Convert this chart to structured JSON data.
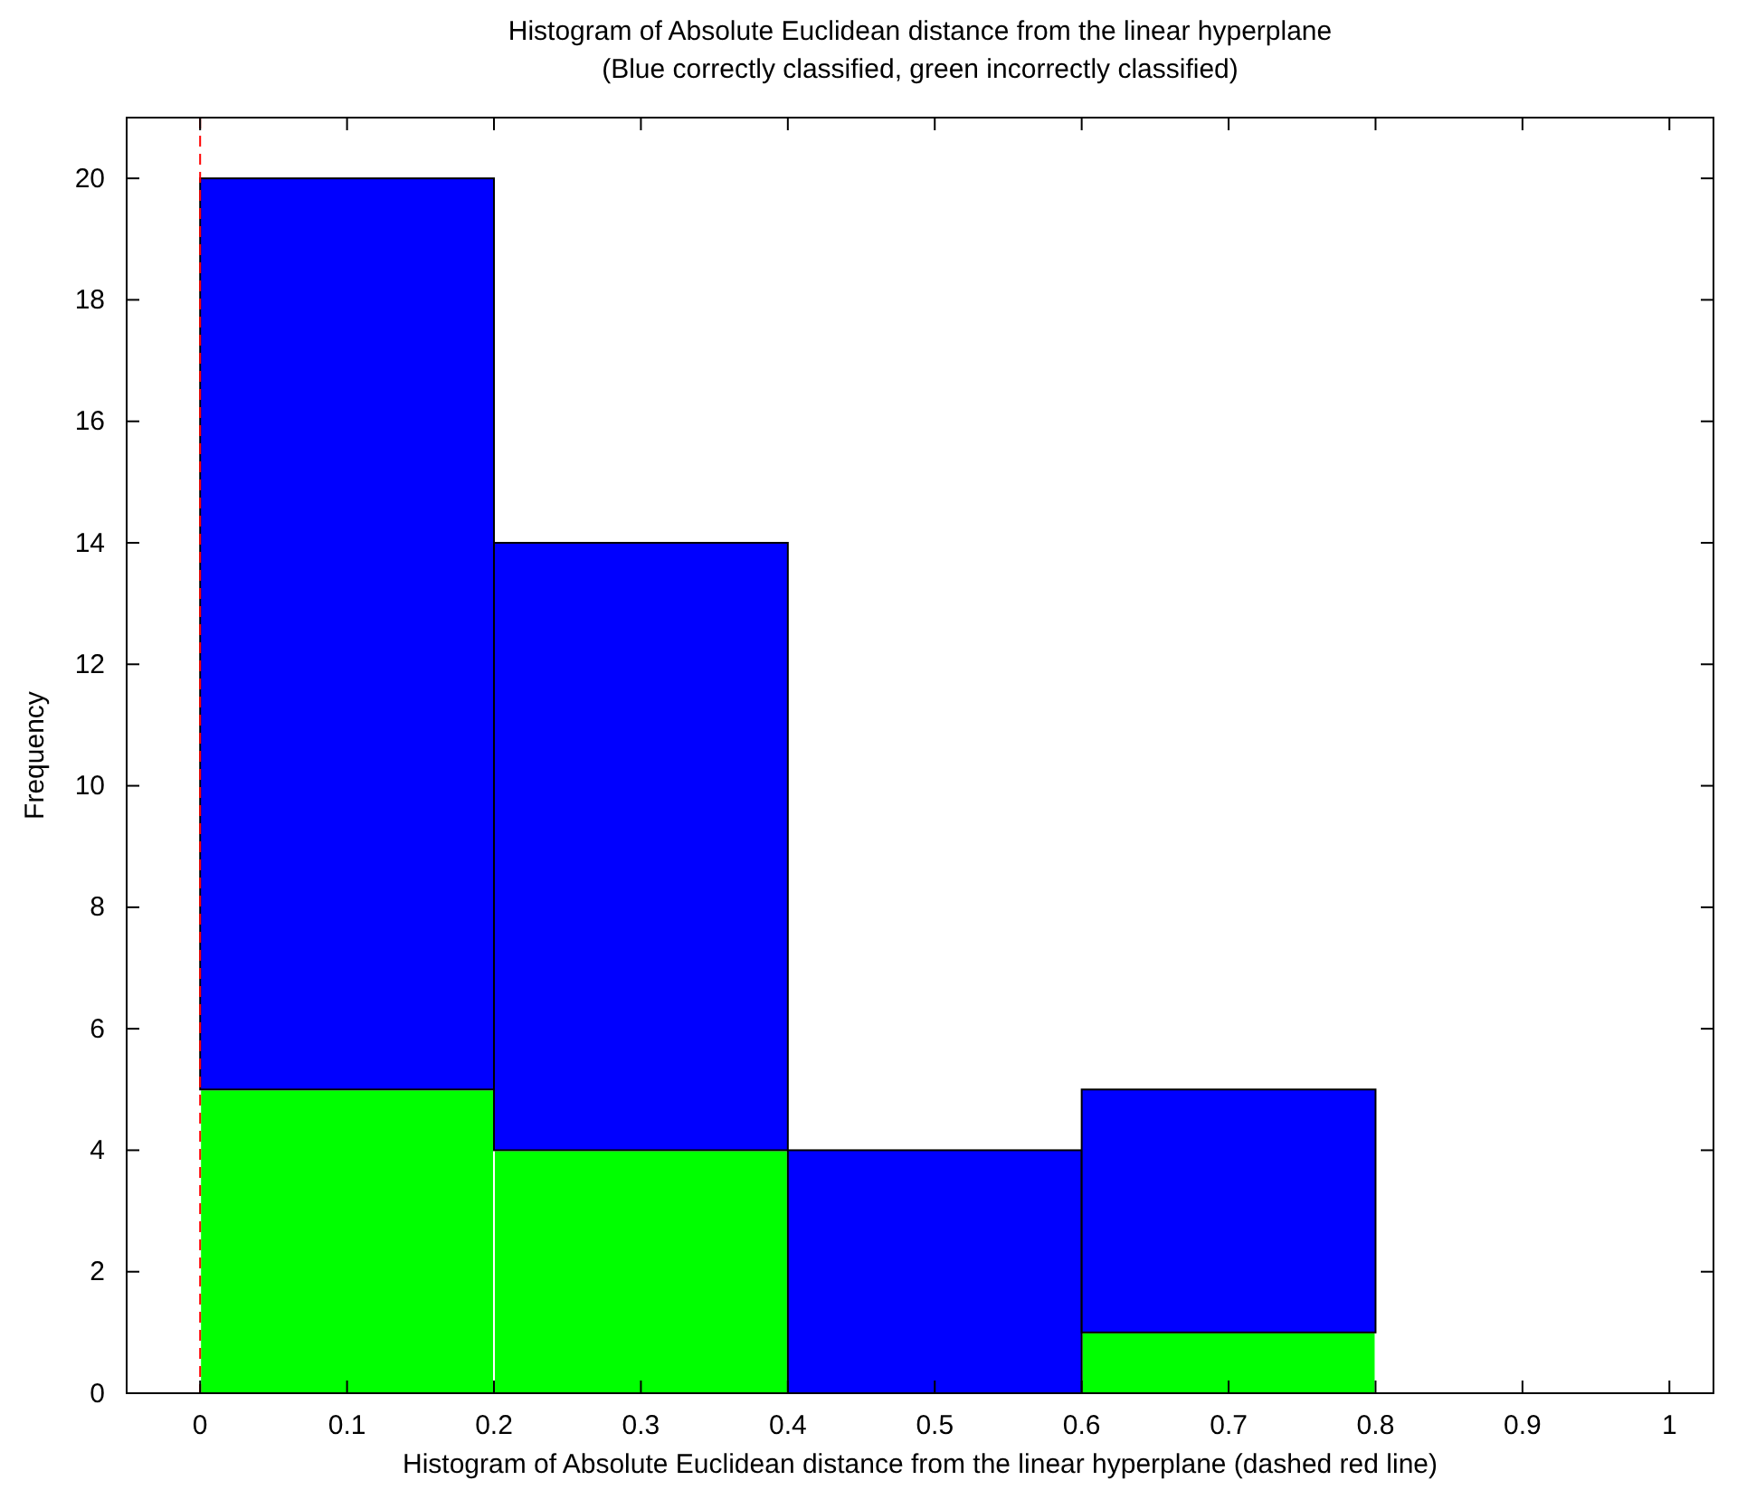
{
  "chart_data": {
    "type": "bar",
    "title": "Histogram of Absolute Euclidean distance from the linear hyperplane",
    "subtitle": "(Blue correctly classified, green incorrectly classified)",
    "xlabel": "Histogram of Absolute Euclidean distance from the linear hyperplane (dashed red line)",
    "ylabel": "Frequency",
    "x": [
      0.1,
      0.3,
      0.5,
      0.7
    ],
    "stacked": true,
    "series": [
      {
        "color": "#00ff00",
        "values": [
          5,
          4,
          0,
          1
        ]
      },
      {
        "color": "#0000ff",
        "values": [
          15,
          10,
          4,
          4
        ]
      }
    ],
    "xlim": [
      -0.05,
      1.03
    ],
    "xticks": [
      0,
      0.1,
      0.2,
      0.3,
      0.4,
      0.5,
      0.6,
      0.7,
      0.8,
      0.9,
      1
    ],
    "ylim": [
      0,
      21
    ],
    "yticks": [
      0,
      2,
      4,
      6,
      8,
      10,
      12,
      14,
      16,
      18,
      20
    ],
    "grid": false,
    "ref_lines": [
      {
        "axis": "x",
        "value": 0,
        "color": "#ff0000",
        "line_style": "dashed"
      }
    ]
  }
}
